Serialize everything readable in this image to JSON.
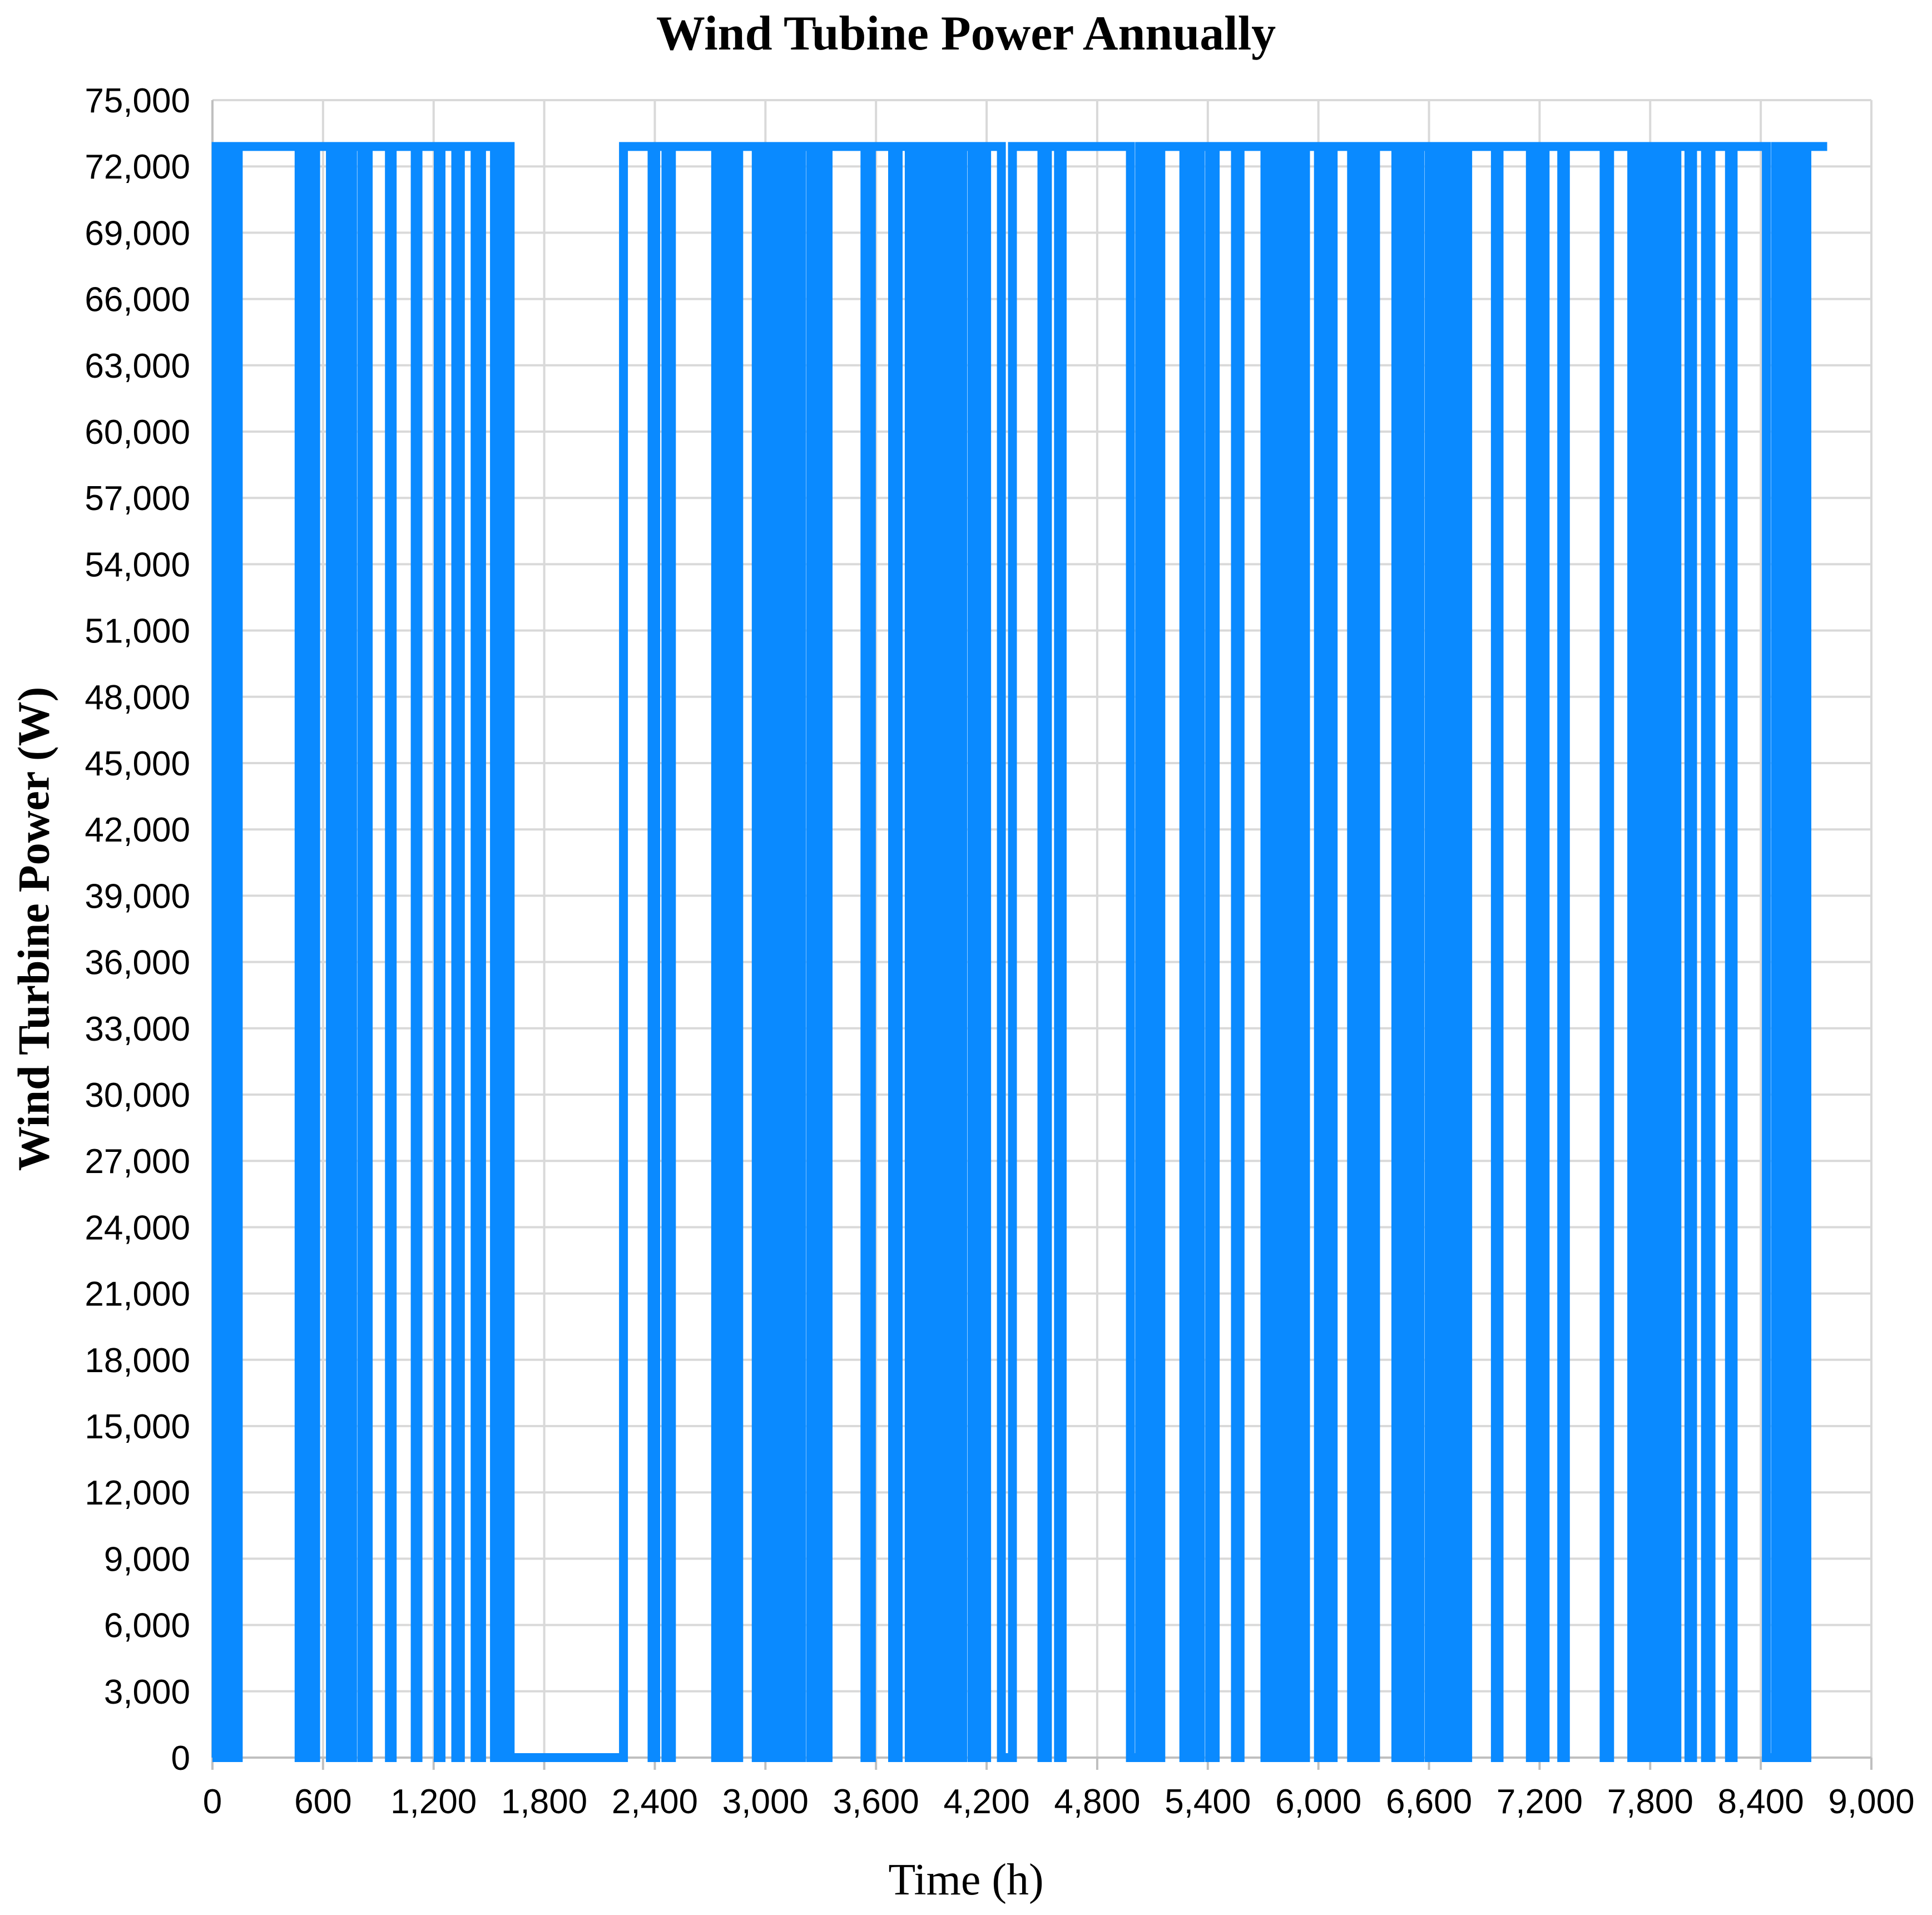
{
  "chart_data": {
    "type": "line",
    "title": "Wind Tubine Power Annually",
    "xlabel": "Time (h)",
    "ylabel": "Wind Turbine Power (W)",
    "xlim": [
      0,
      9000
    ],
    "ylim": [
      0,
      75000
    ],
    "x_ticks": [
      "0",
      "600",
      "1,200",
      "1,800",
      "2,400",
      "3,000",
      "3,600",
      "4,200",
      "4,800",
      "5,400",
      "6,000",
      "6,600",
      "7,200",
      "7,800",
      "8,400",
      "9,000"
    ],
    "y_ticks": [
      "0",
      "3,000",
      "6,000",
      "9,000",
      "12,000",
      "15,000",
      "18,000",
      "21,000",
      "24,000",
      "27,000",
      "30,000",
      "33,000",
      "36,000",
      "39,000",
      "42,000",
      "45,000",
      "48,000",
      "51,000",
      "54,000",
      "57,000",
      "60,000",
      "63,000",
      "66,000",
      "69,000",
      "72,000",
      "75,000"
    ],
    "grid": true,
    "legend": "none",
    "colors": {
      "series": "#0a8aff",
      "grid": "#d9d9d9",
      "axis": "#bfbfbf"
    },
    "series": [
      {
        "rated_power": 72900,
        "x_end": 8760,
        "zero_power_intervals": [
          [
            0,
            20
          ],
          [
            40,
            60
          ],
          [
            75,
            95
          ],
          [
            110,
            140
          ],
          [
            470,
            490
          ],
          [
            510,
            525
          ],
          [
            550,
            560
          ],
          [
            640,
            655
          ],
          [
            685,
            700
          ],
          [
            725,
            760
          ],
          [
            810,
            845
          ],
          [
            960,
            975
          ],
          [
            1100,
            1115
          ],
          [
            1225,
            1240
          ],
          [
            1320,
            1345
          ],
          [
            1425,
            1460
          ],
          [
            1530,
            1545
          ],
          [
            1580,
            1610
          ],
          [
            1615,
            2230
          ],
          [
            2385,
            2405
          ],
          [
            2460,
            2490
          ],
          [
            2730,
            2760
          ],
          [
            2780,
            2810
          ],
          [
            2825,
            2855
          ],
          [
            2950,
            2975
          ],
          [
            3000,
            3015
          ],
          [
            3030,
            3050
          ],
          [
            3065,
            3090
          ],
          [
            3115,
            3140
          ],
          [
            3175,
            3195
          ],
          [
            3245,
            3275
          ],
          [
            3300,
            3340
          ],
          [
            3540,
            3575
          ],
          [
            3690,
            3720
          ],
          [
            3780,
            3800
          ],
          [
            3830,
            3850
          ],
          [
            3865,
            3880
          ],
          [
            3895,
            3915
          ],
          [
            3935,
            3955
          ],
          [
            3975,
            4000
          ],
          [
            4045,
            4070
          ],
          [
            4120,
            4150
          ],
          [
            4180,
            4200
          ],
          [
            4280,
            4340
          ],
          [
            4500,
            4530
          ],
          [
            4590,
            4610
          ],
          [
            4980,
            5030
          ],
          [
            5070,
            5100
          ],
          [
            5115,
            5145
          ],
          [
            5270,
            5310
          ],
          [
            5340,
            5360
          ],
          [
            5410,
            5440
          ],
          [
            5550,
            5575
          ],
          [
            5710,
            5735
          ],
          [
            5765,
            5790
          ],
          [
            5810,
            5835
          ],
          [
            5850,
            5875
          ],
          [
            5895,
            5930
          ],
          [
            6000,
            6020
          ],
          [
            6050,
            6080
          ],
          [
            6180,
            6210
          ],
          [
            6230,
            6260
          ],
          [
            6280,
            6310
          ],
          [
            6420,
            6440
          ],
          [
            6455,
            6475
          ],
          [
            6490,
            6510
          ],
          [
            6530,
            6550
          ],
          [
            6600,
            6630
          ],
          [
            6660,
            6680
          ],
          [
            6700,
            6730
          ],
          [
            6750,
            6770
          ],
          [
            6790,
            6810
          ],
          [
            6960,
            6980
          ],
          [
            7150,
            7170
          ],
          [
            7200,
            7230
          ],
          [
            7320,
            7340
          ],
          [
            7550,
            7580
          ],
          [
            7700,
            7730
          ],
          [
            7745,
            7760
          ],
          [
            7780,
            7800
          ],
          [
            7815,
            7830
          ],
          [
            7850,
            7870
          ],
          [
            7885,
            7905
          ],
          [
            7925,
            7945
          ],
          [
            8010,
            8030
          ],
          [
            8100,
            8130
          ],
          [
            8230,
            8250
          ],
          [
            8430,
            8480
          ],
          [
            8520,
            8540
          ],
          [
            8580,
            8600
          ],
          [
            8620,
            8650
          ]
        ]
      }
    ]
  }
}
